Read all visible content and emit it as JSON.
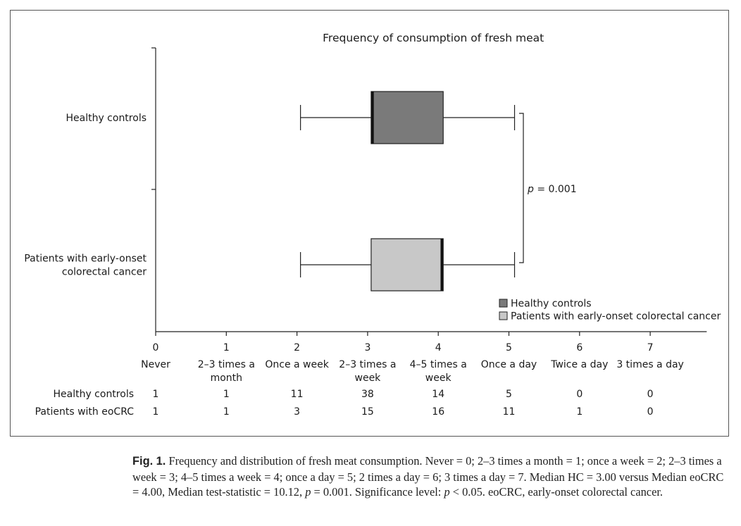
{
  "chart_data": {
    "type": "box",
    "title": "Frequency of consumption of fresh meat",
    "orientation": "horizontal",
    "x_ticks": [
      0,
      1,
      2,
      3,
      4,
      5,
      6,
      7
    ],
    "x_tick_labels": [
      [
        "Never"
      ],
      [
        "2–3 times a",
        "month"
      ],
      [
        "Once a week"
      ],
      [
        "2–3 times a",
        "week"
      ],
      [
        "4–5 times a",
        "week"
      ],
      [
        "Once a day"
      ],
      [
        "Twice a day"
      ],
      [
        "3 times a day"
      ]
    ],
    "xlim": [
      0,
      7.8
    ],
    "series": [
      {
        "name": "Healthy controls",
        "axis_label": [
          "Healthy controls"
        ],
        "whisker_low": 2.05,
        "q1": 3.05,
        "median": 3.07,
        "q3": 4.07,
        "whisker_high": 5.08,
        "color": "#7a7a7a"
      },
      {
        "name": "Patients with early-onset colorectal cancer",
        "axis_label": [
          "Patients with early-onset",
          "colorectal cancer"
        ],
        "whisker_low": 2.05,
        "q1": 3.05,
        "median": 4.05,
        "q3": 4.07,
        "whisker_high": 5.08,
        "color": "#c8c8c8"
      }
    ],
    "significance_label": "= 0.001",
    "significance_p": "p",
    "legend": [
      "Healthy controls",
      "Patients with early-onset colorectal cancer"
    ],
    "legend_position": "bottom-right",
    "table": {
      "rows": [
        {
          "label": "Healthy controls",
          "values": [
            "1",
            "1",
            "11",
            "38",
            "14",
            "5",
            "0",
            "0"
          ]
        },
        {
          "label": "Patients with eoCRC",
          "values": [
            "1",
            "1",
            "3",
            "15",
            "16",
            "11",
            "1",
            "0"
          ]
        }
      ]
    }
  },
  "caption": {
    "label": "Fig. 1.",
    "text_a": " Frequency and distribution of fresh meat consumption. Never = 0; 2–3 times a month = 1; once a week = 2; 2–3 times a week = 3; 4–5 times a week = 4; once a day = 5; 2 times a day = 6; 3 times a day = 7. Median HC = 3.00 versus Median eoCRC = 4.00, Median test-statistic = 10.12, ",
    "p1": "p",
    "text_b": " = 0.001. Significance level: ",
    "p2": "p",
    "text_c": " < 0.05. eoCRC, early-onset colorectal cancer."
  }
}
